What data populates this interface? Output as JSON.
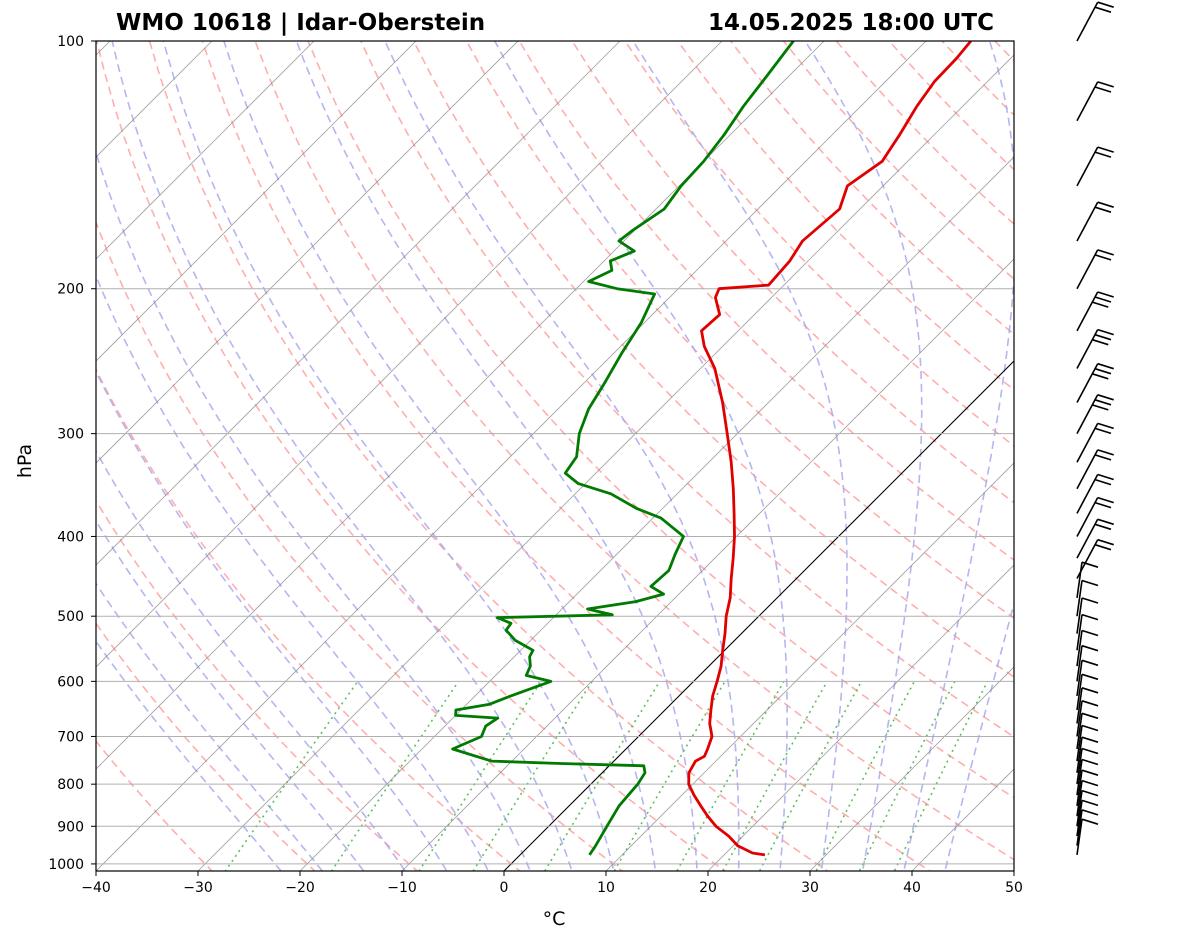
{
  "chart_data": {
    "type": "skew-t log-p diagram",
    "title_left": "WMO 10618 | Idar-Oberstein",
    "title_right": "14.05.2025 18:00 UTC",
    "xlabel": "°C",
    "ylabel": "hPa",
    "xlim": [
      -40,
      50
    ],
    "ylim_hpa": [
      1020,
      100
    ],
    "x_ticks": [
      -40,
      -30,
      -20,
      -10,
      0,
      10,
      20,
      30,
      40,
      50
    ],
    "x_tick_labels": [
      "−40",
      "−30",
      "−20",
      "−10",
      "0",
      "10",
      "20",
      "30",
      "40",
      "50"
    ],
    "y_ticks": [
      100,
      200,
      300,
      400,
      500,
      600,
      700,
      800,
      900,
      1000
    ],
    "y_tick_labels": [
      "100",
      "200",
      "300",
      "400",
      "500",
      "600",
      "700",
      "800",
      "900",
      "1000"
    ],
    "grid": true,
    "colors": {
      "temperature": "#e00000",
      "dewpoint": "#007a00",
      "dry_adiabat": "#ff9a9a",
      "moist_adiabat": "#a8a8f0",
      "mixing_ratio": "#5fbf5f",
      "isotherm": "#888888",
      "isotherm_zero": "#000000",
      "grid": "#b0b0b0"
    },
    "series": [
      {
        "key": "temperature",
        "points_p_t": [
          [
            975,
            24.0
          ],
          [
            970,
            22.6
          ],
          [
            950,
            20.4
          ],
          [
            925,
            18.6
          ],
          [
            900,
            16.4
          ],
          [
            875,
            14.6
          ],
          [
            850,
            12.9
          ],
          [
            825,
            11.2
          ],
          [
            800,
            9.6
          ],
          [
            775,
            8.5
          ],
          [
            750,
            8.0
          ],
          [
            740,
            8.4
          ],
          [
            725,
            8.0
          ],
          [
            700,
            7.2
          ],
          [
            675,
            5.7
          ],
          [
            650,
            4.5
          ],
          [
            625,
            3.3
          ],
          [
            600,
            2.3
          ],
          [
            575,
            1.2
          ],
          [
            550,
            -0.2
          ],
          [
            525,
            -1.6
          ],
          [
            500,
            -3.2
          ],
          [
            475,
            -4.6
          ],
          [
            450,
            -6.4
          ],
          [
            425,
            -8.2
          ],
          [
            400,
            -10.2
          ],
          [
            375,
            -12.5
          ],
          [
            350,
            -15.0
          ],
          [
            325,
            -17.8
          ],
          [
            300,
            -21.0
          ],
          [
            275,
            -24.5
          ],
          [
            250,
            -28.6
          ],
          [
            235,
            -31.8
          ],
          [
            225,
            -33.6
          ],
          [
            215,
            -33.4
          ],
          [
            205,
            -35.5
          ],
          [
            200,
            -36.0
          ],
          [
            198,
            -31.5
          ],
          [
            185,
            -31.8
          ],
          [
            175,
            -32.5
          ],
          [
            160,
            -32.0
          ],
          [
            150,
            -33.5
          ],
          [
            140,
            -32.5
          ],
          [
            130,
            -33.4
          ],
          [
            120,
            -34.5
          ],
          [
            112,
            -35.2
          ],
          [
            105,
            -35.3
          ],
          [
            100,
            -35.6
          ]
        ]
      },
      {
        "key": "dewpoint",
        "points_p_t": [
          [
            975,
            6.8
          ],
          [
            950,
            6.5
          ],
          [
            900,
            5.7
          ],
          [
            850,
            4.9
          ],
          [
            800,
            4.6
          ],
          [
            775,
            4.2
          ],
          [
            760,
            3.4
          ],
          [
            755,
            -5.0
          ],
          [
            750,
            -12.0
          ],
          [
            725,
            -17.0
          ],
          [
            700,
            -15.4
          ],
          [
            680,
            -16.0
          ],
          [
            665,
            -15.6
          ],
          [
            660,
            -20.0
          ],
          [
            650,
            -20.5
          ],
          [
            640,
            -17.8
          ],
          [
            625,
            -16.5
          ],
          [
            600,
            -14.0
          ],
          [
            590,
            -17.0
          ],
          [
            575,
            -17.5
          ],
          [
            560,
            -18.5
          ],
          [
            550,
            -18.8
          ],
          [
            535,
            -21.5
          ],
          [
            520,
            -23.4
          ],
          [
            510,
            -23.6
          ],
          [
            502,
            -25.5
          ],
          [
            498,
            -14.5
          ],
          [
            490,
            -17.5
          ],
          [
            480,
            -13.5
          ],
          [
            470,
            -11.5
          ],
          [
            460,
            -13.5
          ],
          [
            440,
            -13.3
          ],
          [
            420,
            -14.3
          ],
          [
            400,
            -15.2
          ],
          [
            380,
            -19.2
          ],
          [
            370,
            -22.5
          ],
          [
            355,
            -26.5
          ],
          [
            345,
            -30.7
          ],
          [
            335,
            -33.0
          ],
          [
            320,
            -33.5
          ],
          [
            300,
            -35.5
          ],
          [
            280,
            -37.0
          ],
          [
            260,
            -38.0
          ],
          [
            240,
            -39.2
          ],
          [
            220,
            -40.3
          ],
          [
            203,
            -41.8
          ],
          [
            200,
            -46.0
          ],
          [
            196,
            -49.5
          ],
          [
            190,
            -48.3
          ],
          [
            185,
            -49.4
          ],
          [
            180,
            -48.0
          ],
          [
            175,
            -50.5
          ],
          [
            170,
            -50.2
          ],
          [
            160,
            -49.2
          ],
          [
            150,
            -49.8
          ],
          [
            140,
            -50.0
          ],
          [
            130,
            -50.6
          ],
          [
            120,
            -51.5
          ],
          [
            110,
            -52.2
          ],
          [
            100,
            -53.0
          ]
        ]
      }
    ],
    "wind_barbs_p": [
      975,
      950,
      925,
      900,
      875,
      850,
      825,
      800,
      775,
      750,
      725,
      700,
      675,
      650,
      625,
      600,
      575,
      550,
      525,
      500,
      475,
      450,
      425,
      400,
      375,
      350,
      325,
      300,
      275,
      250,
      225,
      200,
      175,
      150,
      125,
      100
    ]
  }
}
